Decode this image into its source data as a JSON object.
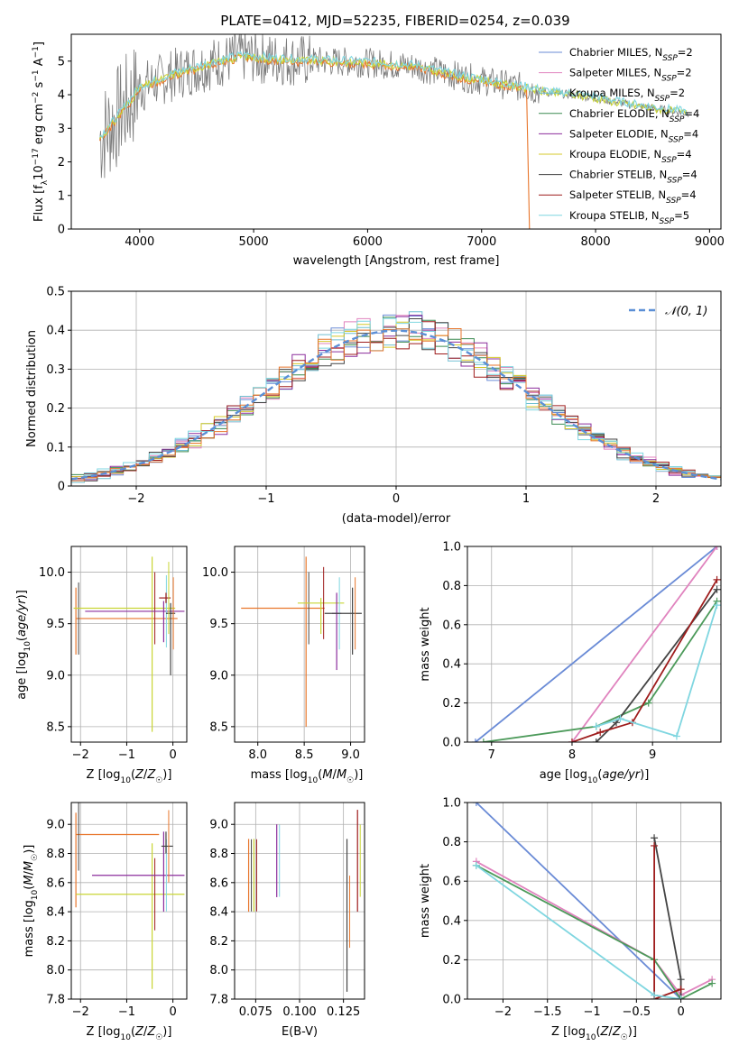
{
  "figure": {
    "title": "PLATE=0412, MJD=52235, FIBERID=0254, z=0.039"
  },
  "colors": {
    "series": [
      "#6a8bd6",
      "#e083be",
      "#6fbfd0",
      "#3a8a50",
      "#8b2d9c",
      "#d4c82a",
      "#444444",
      "#9e1c1c",
      "#7fd6e0"
    ],
    "orange": "#e8762c",
    "data": "#7a7a7a"
  },
  "chart_data": [
    {
      "id": "spectrum",
      "type": "line",
      "xlabel": "wavelength [Angstrom, rest frame]",
      "ylabel": "Flux [f_λ10^-17 erg cm^-2 s^-1 A^-1]",
      "xlim": [
        3400,
        9100
      ],
      "ylim": [
        0,
        5.8
      ],
      "xticks": [
        4000,
        5000,
        6000,
        7000,
        8000,
        9000
      ],
      "yticks": [
        0,
        1,
        2,
        3,
        4,
        5
      ],
      "legend_position": "upper right",
      "legend": [
        "Chabrier MILES, N_SSP=2",
        "Salpeter MILES, N_SSP=2",
        "Kroupa MILES, N_SSP=2",
        "Chabrier ELODIE, N_SSP=4",
        "Salpeter ELODIE, N_SSP=4",
        "Kroupa ELODIE, N_SSP=4",
        "Chabrier STELIB, N_SSP=4",
        "Salpeter STELIB, N_SSP=4",
        "Kroupa STELIB, N_SSP=5"
      ],
      "model_continuum": {
        "x": [
          3650,
          3800,
          4000,
          4300,
          4600,
          4900,
          5200,
          5600,
          6000,
          6400,
          6800,
          7200,
          7400,
          7600,
          7800,
          8000,
          8300,
          8600,
          8800
        ],
        "y": [
          2.7,
          3.3,
          4.2,
          4.6,
          4.9,
          5.15,
          5.05,
          5.0,
          4.95,
          4.85,
          4.55,
          4.3,
          4.2,
          4.05,
          4.0,
          3.9,
          3.7,
          3.55,
          3.45
        ]
      }
    },
    {
      "id": "residuals",
      "type": "line",
      "xlabel": "(data-model)/error",
      "ylabel": "Normed distribution",
      "xlim": [
        -2.5,
        2.5
      ],
      "ylim": [
        0,
        0.5
      ],
      "xticks": [
        -2,
        -1,
        0,
        1,
        2
      ],
      "yticks": [
        0.0,
        0.1,
        0.2,
        0.3,
        0.4,
        0.5
      ],
      "legend": [
        "𝒩(0, 1)"
      ],
      "legend_position": "upper right",
      "bin_width": 0.1
    },
    {
      "id": "age_vs_Z",
      "type": "scatter",
      "xlabel": "Z [log10(Z/Z☉)]",
      "ylabel": "age  [log10(age/yr)]",
      "xlim": [
        -2.2,
        0.3
      ],
      "ylim": [
        8.35,
        10.25
      ],
      "xticks": [
        -2,
        -1,
        0
      ],
      "yticks": [
        8.5,
        9.0,
        9.5,
        10.0
      ],
      "points": [
        {
          "x": -2.1,
          "y": 9.55,
          "xerr": [
            0,
            2.2
          ],
          "yerr": [
            0.35,
            0.3
          ]
        },
        {
          "x": -0.45,
          "y": 9.65,
          "xerr": [
            1.7,
            0.5
          ],
          "yerr": [
            1.2,
            0.5
          ]
        },
        {
          "x": -0.2,
          "y": 9.62,
          "xerr": [
            1.7,
            0.45
          ],
          "yerr": [
            0.3,
            0.1
          ]
        },
        {
          "x": -0.05,
          "y": 9.6,
          "xerr": [
            0.1,
            0.1
          ],
          "yerr": [
            0.6,
            0.1
          ]
        },
        {
          "x": -0.15,
          "y": 9.75,
          "xerr": [
            0.15,
            0.1
          ],
          "yerr": [
            0.05,
            0.05
          ]
        }
      ]
    },
    {
      "id": "age_vs_mass",
      "type": "scatter",
      "xlabel": "mass [log10(M/M☉)]",
      "ylabel": "",
      "xlim": [
        7.75,
        9.15
      ],
      "ylim": [
        8.35,
        10.25
      ],
      "xticks": [
        8.0,
        8.5,
        9.0
      ],
      "yticks": [
        8.5,
        9.0,
        9.5,
        10.0
      ],
      "points": [
        {
          "x": 8.52,
          "y": 9.65,
          "xerr": [
            0.7,
            0.2
          ],
          "yerr": [
            1.15,
            0.5
          ]
        },
        {
          "x": 8.68,
          "y": 9.7,
          "xerr": [
            0.25,
            0.25
          ],
          "yerr": [
            0.3,
            0.05
          ]
        },
        {
          "x": 8.85,
          "y": 9.6,
          "xerr": [
            0.05,
            0.05
          ],
          "yerr": [
            0.55,
            0.2
          ]
        },
        {
          "x": 9.02,
          "y": 9.6,
          "xerr": [
            0.3,
            0.1
          ],
          "yerr": [
            0.4,
            0.25
          ]
        }
      ]
    },
    {
      "id": "weight_vs_age",
      "type": "line",
      "xlabel": "age  [log10(age/yr)]",
      "ylabel": "mass weight",
      "xlim": [
        6.7,
        9.85
      ],
      "ylim": [
        0,
        1.0
      ],
      "xticks": [
        7,
        8,
        9
      ],
      "yticks": [
        0.0,
        0.2,
        0.4,
        0.6,
        0.8,
        1.0
      ],
      "series": [
        {
          "x": [
            6.8,
            9.8
          ],
          "y": [
            0.0,
            1.0
          ]
        },
        {
          "x": [
            8.0,
            9.8
          ],
          "y": [
            0.0,
            1.0
          ]
        },
        {
          "x": [
            6.9,
            8.3,
            8.95,
            9.8
          ],
          "y": [
            0.0,
            0.08,
            0.2,
            0.72
          ]
        },
        {
          "x": [
            8.3,
            8.55,
            9.8
          ],
          "y": [
            0.0,
            0.1,
            0.78
          ]
        },
        {
          "x": [
            8.0,
            8.35,
            8.75,
            9.8
          ],
          "y": [
            0.0,
            0.05,
            0.1,
            0.83
          ]
        },
        {
          "x": [
            8.3,
            8.6,
            9.3,
            9.8
          ],
          "y": [
            0.08,
            0.12,
            0.03,
            0.7
          ]
        }
      ]
    },
    {
      "id": "mass_vs_Z",
      "type": "scatter",
      "xlabel": "Z [log10(Z/Z☉)]",
      "ylabel": "mass [log10(M/M☉)]",
      "xlim": [
        -2.2,
        0.3
      ],
      "ylim": [
        7.8,
        9.15
      ],
      "xticks": [
        -2,
        -1,
        0
      ],
      "yticks": [
        7.8,
        8.0,
        8.2,
        8.4,
        8.6,
        8.8,
        9.0
      ],
      "points": [
        {
          "x": -2.1,
          "y": 8.93,
          "xerr": [
            0,
            1.8
          ],
          "yerr": [
            0.5,
            0.15
          ]
        },
        {
          "x": -0.45,
          "y": 8.52,
          "xerr": [
            1.65,
            0.7
          ],
          "yerr": [
            0.65,
            0.35
          ]
        },
        {
          "x": -0.2,
          "y": 8.65,
          "xerr": [
            1.55,
            0.45
          ],
          "yerr": [
            0.25,
            0.3
          ]
        },
        {
          "x": -0.15,
          "y": 8.85,
          "xerr": [
            0.1,
            0.15
          ],
          "yerr": [
            0.05,
            0.1
          ]
        }
      ]
    },
    {
      "id": "mass_vs_ebv",
      "type": "scatter",
      "xlabel": "E(B-V)",
      "ylabel": "",
      "xlim": [
        0.063,
        0.137
      ],
      "ylim": [
        7.8,
        9.15
      ],
      "xticks": [
        0.075,
        0.1,
        0.125
      ],
      "yticks": [
        7.8,
        8.0,
        8.2,
        8.4,
        8.6,
        8.8,
        9.0
      ],
      "points": [
        {
          "x": 0.071,
          "y": 8.65,
          "yerr": [
            0.25,
            0.25
          ]
        },
        {
          "x": 0.074,
          "y": 8.65,
          "yerr": [
            0.25,
            0.25
          ]
        },
        {
          "x": 0.087,
          "y": 8.75,
          "yerr": [
            0.25,
            0.25
          ]
        },
        {
          "x": 0.127,
          "y": 8.4,
          "yerr": [
            0.55,
            0.5
          ]
        },
        {
          "x": 0.133,
          "y": 8.75,
          "yerr": [
            0.35,
            0.35
          ]
        }
      ]
    },
    {
      "id": "weight_vs_Z",
      "type": "line",
      "xlabel": "Z [log10(Z/Z☉)]",
      "ylabel": "mass weight",
      "xlim": [
        -2.4,
        0.45
      ],
      "ylim": [
        0,
        1.0
      ],
      "xticks": [
        -2.0,
        -1.5,
        -1.0,
        -0.5,
        0.0
      ],
      "yticks": [
        0.0,
        0.2,
        0.4,
        0.6,
        0.8,
        1.0
      ],
      "series": [
        {
          "x": [
            -2.3,
            0.0
          ],
          "y": [
            1.0,
            0.0
          ]
        },
        {
          "x": [
            -2.3,
            -0.3,
            0.0,
            0.35
          ],
          "y": [
            0.7,
            0.2,
            0.02,
            0.1
          ]
        },
        {
          "x": [
            -2.3,
            -0.3,
            0.0,
            0.35
          ],
          "y": [
            0.68,
            0.2,
            0.0,
            0.08
          ]
        },
        {
          "x": [
            -0.3,
            0.0,
            0.0
          ],
          "y": [
            0.82,
            0.1,
            0.0
          ]
        },
        {
          "x": [
            -0.3,
            -0.3,
            0.0
          ],
          "y": [
            0.78,
            0.0,
            0.05
          ]
        },
        {
          "x": [
            -2.3,
            -0.3,
            0.0
          ],
          "y": [
            0.68,
            0.02,
            0.0
          ]
        }
      ]
    }
  ]
}
